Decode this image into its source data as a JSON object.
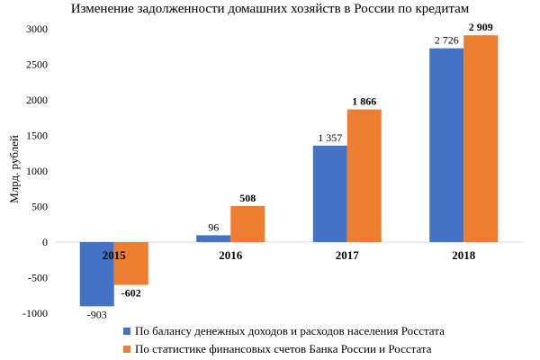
{
  "chart_data": {
    "type": "bar",
    "title": "Изменение задолженности домашних хозяйств в России по кредитам",
    "ylabel": "Млрд. рублей",
    "xlabel": "",
    "categories": [
      "2015",
      "2016",
      "2017",
      "2018"
    ],
    "ylim": [
      -1000,
      3000
    ],
    "yticks": [
      3000,
      2500,
      2000,
      1500,
      1000,
      500,
      0,
      -500,
      -1000
    ],
    "grid": false,
    "legend_position": "bottom",
    "series": [
      {
        "name": "По балансу денежных доходов и расходов населения Росстата",
        "color": "#4472C4",
        "values": [
          -903,
          96,
          1357,
          2726
        ],
        "labels": [
          "-903",
          "96",
          "1 357",
          "2 726"
        ],
        "labels_bold": false
      },
      {
        "name": "По статистике финансовых счетов Банка России и Росстата",
        "color": "#ED7D31",
        "values": [
          -602,
          508,
          1866,
          2909
        ],
        "labels": [
          "-602",
          "508",
          "1 866",
          "2 909"
        ],
        "labels_bold": true
      }
    ]
  }
}
